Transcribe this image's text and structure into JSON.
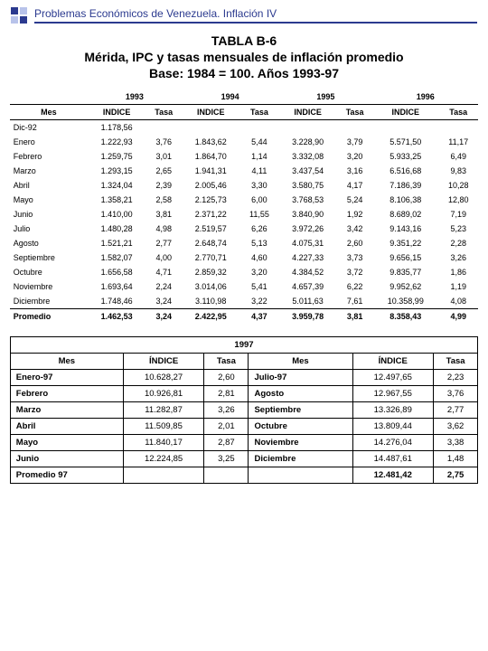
{
  "header": "Problemas Económicos de Venezuela.  Inflación IV",
  "title": {
    "l1": "TABLA B-6",
    "l2": "Mérida, IPC y tasas mensuales de inflación promedio",
    "l3": "Base: 1984 = 100. Años 1993-97"
  },
  "t1": {
    "years": [
      "1993",
      "1994",
      "1995",
      "1996"
    ],
    "h_mes": "Mes",
    "h_ind": "INDICE",
    "h_tasa": "Tasa",
    "rows": [
      {
        "m": "Dic-92",
        "c": [
          "1.178,56",
          "",
          "",
          "",
          "",
          "",
          "",
          ""
        ]
      },
      {
        "m": "Enero",
        "c": [
          "1.222,93",
          "3,76",
          "1.843,62",
          "5,44",
          "3.228,90",
          "3,79",
          "5.571,50",
          "11,17"
        ]
      },
      {
        "m": "Febrero",
        "c": [
          "1.259,75",
          "3,01",
          "1.864,70",
          "1,14",
          "3.332,08",
          "3,20",
          "5.933,25",
          "6,49"
        ]
      },
      {
        "m": "Marzo",
        "c": [
          "1.293,15",
          "2,65",
          "1.941,31",
          "4,11",
          "3.437,54",
          "3,16",
          "6.516,68",
          "9,83"
        ]
      },
      {
        "m": "Abril",
        "c": [
          "1.324,04",
          "2,39",
          "2.005,46",
          "3,30",
          "3.580,75",
          "4,17",
          "7.186,39",
          "10,28"
        ]
      },
      {
        "m": "Mayo",
        "c": [
          "1.358,21",
          "2,58",
          "2.125,73",
          "6,00",
          "3.768,53",
          "5,24",
          "8.106,38",
          "12,80"
        ]
      },
      {
        "m": "Junio",
        "c": [
          "1.410,00",
          "3,81",
          "2.371,22",
          "11,55",
          "3.840,90",
          "1,92",
          "8.689,02",
          "7,19"
        ]
      },
      {
        "m": "Julio",
        "c": [
          "1.480,28",
          "4,98",
          "2.519,57",
          "6,26",
          "3.972,26",
          "3,42",
          "9.143,16",
          "5,23"
        ]
      },
      {
        "m": "Agosto",
        "c": [
          "1.521,21",
          "2,77",
          "2.648,74",
          "5,13",
          "4.075,31",
          "2,60",
          "9.351,22",
          "2,28"
        ]
      },
      {
        "m": "Septiembre",
        "c": [
          "1.582,07",
          "4,00",
          "2.770,71",
          "4,60",
          "4.227,33",
          "3,73",
          "9.656,15",
          "3,26"
        ]
      },
      {
        "m": "Octubre",
        "c": [
          "1.656,58",
          "4,71",
          "2.859,32",
          "3,20",
          "4.384,52",
          "3,72",
          "9.835,77",
          "1,86"
        ]
      },
      {
        "m": "Noviembre",
        "c": [
          "1.693,64",
          "2,24",
          "3.014,06",
          "5,41",
          "4.657,39",
          "6,22",
          "9.952,62",
          "1,19"
        ]
      },
      {
        "m": "Diciembre",
        "c": [
          "1.748,46",
          "3,24",
          "3.110,98",
          "3,22",
          "5.011,63",
          "7,61",
          "10.358,99",
          "4,08"
        ]
      }
    ],
    "prom": {
      "m": "Promedio",
      "c": [
        "1.462,53",
        "3,24",
        "2.422,95",
        "4,37",
        "3.959,78",
        "3,81",
        "8.358,43",
        "4,99"
      ]
    }
  },
  "t2": {
    "year": "1997",
    "h_mes": "Mes",
    "h_ind": "ÍNDICE",
    "h_tasa": "Tasa",
    "left": [
      {
        "m": "Enero-97",
        "i": "10.628,27",
        "t": "2,60"
      },
      {
        "m": "Febrero",
        "i": "10.926,81",
        "t": "2,81"
      },
      {
        "m": "Marzo",
        "i": "11.282,87",
        "t": "3,26"
      },
      {
        "m": "Abril",
        "i": "11.509,85",
        "t": "2,01"
      },
      {
        "m": "Mayo",
        "i": "11.840,17",
        "t": "2,87"
      },
      {
        "m": "Junio",
        "i": "12.224,85",
        "t": "3,25"
      }
    ],
    "right": [
      {
        "m": "Julio-97",
        "i": "12.497,65",
        "t": "2,23"
      },
      {
        "m": "Agosto",
        "i": "12.967,55",
        "t": "3,76"
      },
      {
        "m": "Septiembre",
        "i": "13.326,89",
        "t": "2,77"
      },
      {
        "m": "Octubre",
        "i": "13.809,44",
        "t": "3,62"
      },
      {
        "m": "Noviembre",
        "i": "14.276,04",
        "t": "3,38"
      },
      {
        "m": "Diciembre",
        "i": "14.487,61",
        "t": "1,48"
      }
    ],
    "prom": {
      "m": "Promedio 97",
      "i": "12.481,42",
      "t": "2,75"
    }
  }
}
